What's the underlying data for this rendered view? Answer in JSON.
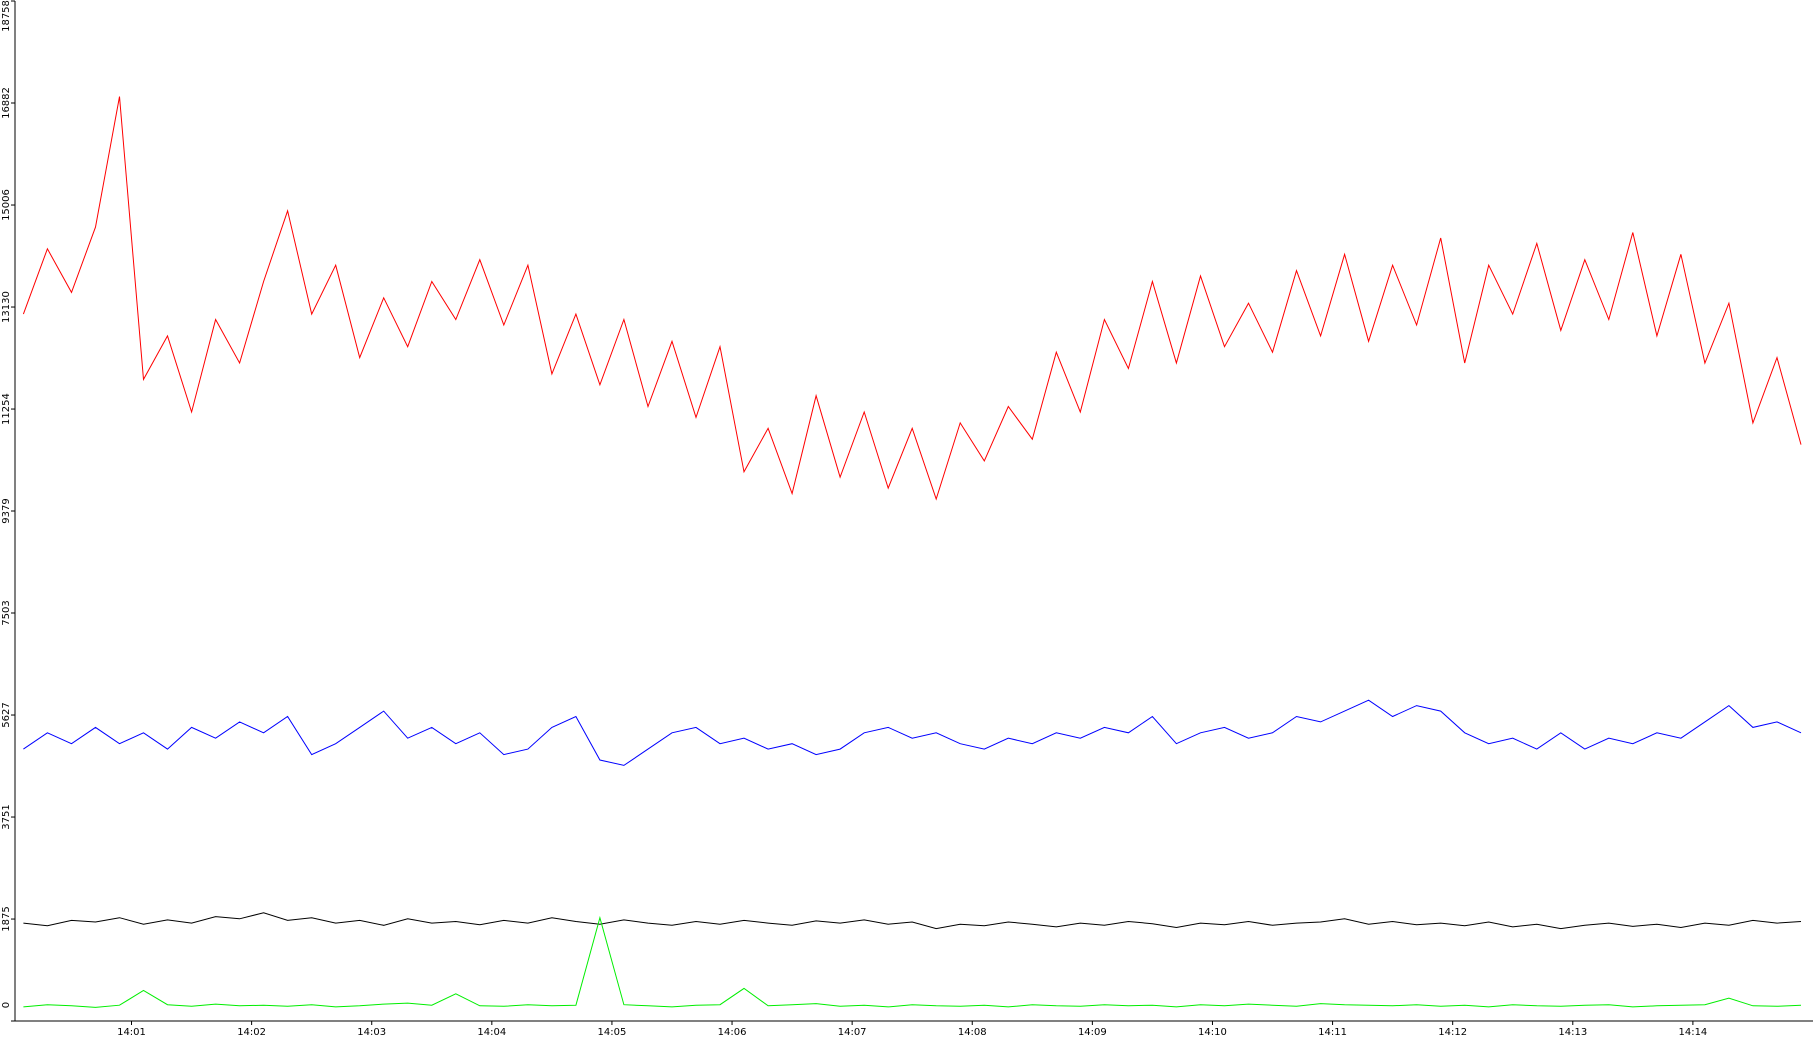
{
  "chart_data": {
    "type": "line",
    "x": [
      0.1,
      0.3,
      0.5,
      0.7,
      0.9,
      1.1,
      1.3,
      1.5,
      1.7,
      1.9,
      2.1,
      2.3,
      2.5,
      2.7,
      2.9,
      3.1,
      3.3,
      3.5,
      3.7,
      3.9,
      4.1,
      4.3,
      4.5,
      4.7,
      4.9,
      5.1,
      5.3,
      5.5,
      5.7,
      5.9,
      6.1,
      6.3,
      6.5,
      6.7,
      6.9,
      7.1,
      7.3,
      7.5,
      7.7,
      7.9,
      8.1,
      8.3,
      8.5,
      8.7,
      8.9,
      9.1,
      9.3,
      9.5,
      9.7,
      9.9,
      10.1,
      10.3,
      10.5,
      10.7,
      10.9,
      11.1,
      11.3,
      11.5,
      11.7,
      11.9,
      12.1,
      12.3,
      12.5,
      12.7,
      12.9,
      13.1,
      13.3,
      13.5,
      13.7,
      13.9,
      14.1,
      14.3,
      14.5,
      14.7,
      14.9
    ],
    "series": [
      {
        "color": "#ff0000",
        "values": [
          13000,
          14200,
          13400,
          14600,
          17000,
          11800,
          12600,
          11200,
          12900,
          12100,
          13600,
          14900,
          13000,
          13900,
          12200,
          13300,
          12400,
          13600,
          12900,
          14000,
          12800,
          13900,
          11900,
          13000,
          11700,
          12900,
          11300,
          12500,
          11100,
          12400,
          10100,
          10900,
          9700,
          11500,
          10000,
          11200,
          9800,
          10900,
          9600,
          11000,
          10300,
          11300,
          10700,
          12300,
          11200,
          12900,
          12000,
          13600,
          12100,
          13700,
          12400,
          13200,
          12300,
          13800,
          12600,
          14100,
          12500,
          13900,
          12800,
          14400,
          12100,
          13900,
          13000,
          14300,
          12700,
          14000,
          12900,
          14500,
          12600,
          14100,
          12100,
          13200,
          11000,
          12200,
          10600
        ]
      },
      {
        "color": "#0000ff",
        "values": [
          5000,
          5300,
          5100,
          5400,
          5100,
          5300,
          5000,
          5400,
          5200,
          5500,
          5300,
          5600,
          4900,
          5100,
          5400,
          5700,
          5200,
          5400,
          5100,
          5300,
          4900,
          5000,
          5400,
          5600,
          4800,
          4700,
          5000,
          5300,
          5400,
          5100,
          5200,
          5000,
          5100,
          4900,
          5000,
          5300,
          5400,
          5200,
          5300,
          5100,
          5000,
          5200,
          5100,
          5300,
          5200,
          5400,
          5300,
          5600,
          5100,
          5300,
          5400,
          5200,
          5300,
          5600,
          5500,
          5700,
          5900,
          5600,
          5800,
          5700,
          5300,
          5100,
          5200,
          5000,
          5300,
          5000,
          5200,
          5100,
          5300,
          5200,
          5500,
          5800,
          5400,
          5500,
          5300
        ]
      },
      {
        "color": "#000000",
        "values": [
          1800,
          1750,
          1850,
          1820,
          1900,
          1780,
          1860,
          1800,
          1920,
          1880,
          1990,
          1850,
          1900,
          1800,
          1850,
          1760,
          1880,
          1800,
          1830,
          1770,
          1850,
          1800,
          1900,
          1830,
          1780,
          1860,
          1800,
          1760,
          1830,
          1780,
          1850,
          1800,
          1760,
          1840,
          1800,
          1860,
          1780,
          1820,
          1700,
          1780,
          1750,
          1820,
          1780,
          1730,
          1800,
          1760,
          1830,
          1790,
          1720,
          1800,
          1770,
          1830,
          1760,
          1800,
          1820,
          1880,
          1780,
          1830,
          1770,
          1800,
          1750,
          1820,
          1730,
          1780,
          1700,
          1760,
          1800,
          1740,
          1780,
          1720,
          1800,
          1760,
          1850,
          1800,
          1830
        ]
      },
      {
        "color": "#00ee00",
        "values": [
          260,
          300,
          280,
          250,
          290,
          560,
          300,
          270,
          310,
          280,
          290,
          270,
          300,
          260,
          280,
          310,
          330,
          290,
          500,
          280,
          270,
          300,
          280,
          290,
          1900,
          300,
          280,
          260,
          290,
          300,
          600,
          280,
          300,
          320,
          270,
          290,
          260,
          300,
          280,
          270,
          290,
          260,
          300,
          280,
          270,
          300,
          280,
          290,
          260,
          300,
          280,
          310,
          290,
          270,
          320,
          300,
          290,
          280,
          300,
          270,
          290,
          260,
          300,
          280,
          270,
          290,
          300,
          260,
          280,
          290,
          300,
          420,
          280,
          270,
          290
        ]
      }
    ],
    "xlim": [
      0.03,
      15.0
    ],
    "xticks": [
      {
        "value": 1,
        "label": "14:01"
      },
      {
        "value": 2,
        "label": "14:02"
      },
      {
        "value": 3,
        "label": "14:03"
      },
      {
        "value": 4,
        "label": "14:04"
      },
      {
        "value": 5,
        "label": "14:05"
      },
      {
        "value": 6,
        "label": "14:06"
      },
      {
        "value": 7,
        "label": "14:07"
      },
      {
        "value": 8,
        "label": "14:08"
      },
      {
        "value": 9,
        "label": "14:09"
      },
      {
        "value": 10,
        "label": "14:10"
      },
      {
        "value": 11,
        "label": "14:11"
      },
      {
        "value": 12,
        "label": "14:12"
      },
      {
        "value": 13,
        "label": "14:13"
      },
      {
        "value": 14,
        "label": "14:14"
      }
    ],
    "ylim": [
      0,
      18758
    ],
    "yticks": [
      0,
      1875,
      3751,
      5627,
      7503,
      9379,
      11254,
      13130,
      15006,
      16882,
      18758
    ]
  }
}
